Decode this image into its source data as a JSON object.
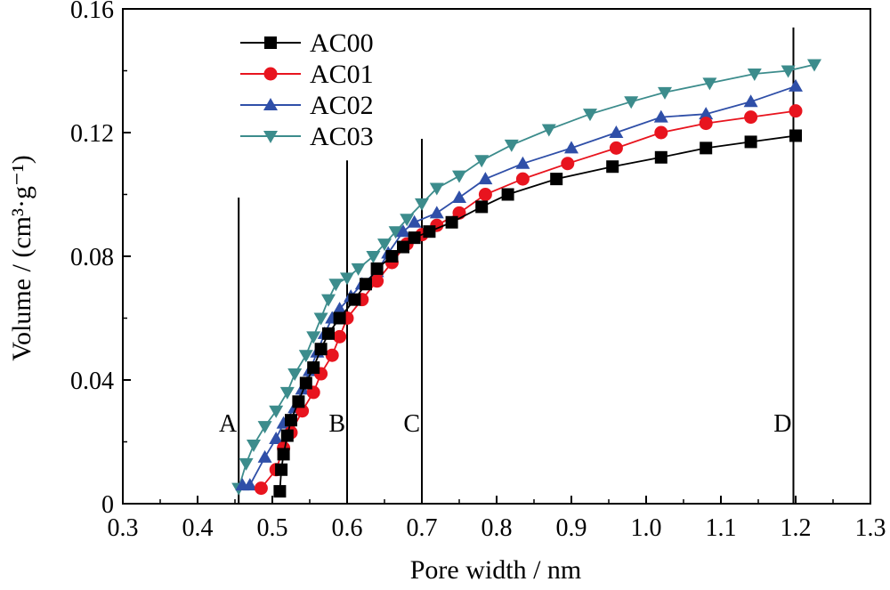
{
  "chart_data": {
    "type": "line",
    "title": "",
    "xlabel": "Pore width / nm",
    "ylabel": "Volume / (cm³·g⁻¹)",
    "xlim": [
      0.3,
      1.3
    ],
    "ylim": [
      0,
      0.16
    ],
    "x_ticks": [
      "0.3",
      "0.4",
      "0.5",
      "0.6",
      "0.7",
      "0.8",
      "0.9",
      "1.0",
      "1.1",
      "1.2",
      "1.3"
    ],
    "y_ticks": [
      "0",
      "0.04",
      "0.08",
      "0.12",
      "0.16"
    ],
    "grid": false,
    "legend_position": "top-left",
    "series": [
      {
        "name": "AC00",
        "color": "#000000",
        "marker": "square",
        "points": [
          [
            0.51,
            0.004
          ],
          [
            0.512,
            0.011
          ],
          [
            0.515,
            0.016
          ],
          [
            0.52,
            0.022
          ],
          [
            0.525,
            0.027
          ],
          [
            0.535,
            0.033
          ],
          [
            0.545,
            0.039
          ],
          [
            0.555,
            0.044
          ],
          [
            0.565,
            0.05
          ],
          [
            0.575,
            0.055
          ],
          [
            0.59,
            0.06
          ],
          [
            0.61,
            0.066
          ],
          [
            0.625,
            0.071
          ],
          [
            0.64,
            0.076
          ],
          [
            0.66,
            0.08
          ],
          [
            0.675,
            0.083
          ],
          [
            0.69,
            0.086
          ],
          [
            0.71,
            0.088
          ],
          [
            0.74,
            0.091
          ],
          [
            0.78,
            0.096
          ],
          [
            0.815,
            0.1
          ],
          [
            0.88,
            0.105
          ],
          [
            0.955,
            0.109
          ],
          [
            1.02,
            0.112
          ],
          [
            1.08,
            0.115
          ],
          [
            1.14,
            0.117
          ],
          [
            1.2,
            0.119
          ]
        ]
      },
      {
        "name": "AC01",
        "color": "#e8141e",
        "marker": "circle",
        "points": [
          [
            0.485,
            0.005
          ],
          [
            0.505,
            0.011
          ],
          [
            0.515,
            0.018
          ],
          [
            0.525,
            0.023
          ],
          [
            0.54,
            0.03
          ],
          [
            0.555,
            0.036
          ],
          [
            0.565,
            0.042
          ],
          [
            0.58,
            0.048
          ],
          [
            0.59,
            0.054
          ],
          [
            0.6,
            0.06
          ],
          [
            0.62,
            0.066
          ],
          [
            0.64,
            0.072
          ],
          [
            0.66,
            0.078
          ],
          [
            0.68,
            0.084
          ],
          [
            0.7,
            0.087
          ],
          [
            0.72,
            0.09
          ],
          [
            0.75,
            0.094
          ],
          [
            0.785,
            0.1
          ],
          [
            0.835,
            0.105
          ],
          [
            0.895,
            0.11
          ],
          [
            0.96,
            0.115
          ],
          [
            1.02,
            0.12
          ],
          [
            1.08,
            0.123
          ],
          [
            1.14,
            0.125
          ],
          [
            1.2,
            0.127
          ]
        ]
      },
      {
        "name": "AC02",
        "color": "#2f4fa8",
        "marker": "triangle-up",
        "points": [
          [
            0.46,
            0.006
          ],
          [
            0.47,
            0.006
          ],
          [
            0.49,
            0.015
          ],
          [
            0.505,
            0.021
          ],
          [
            0.515,
            0.026
          ],
          [
            0.53,
            0.031
          ],
          [
            0.54,
            0.037
          ],
          [
            0.55,
            0.043
          ],
          [
            0.56,
            0.049
          ],
          [
            0.57,
            0.055
          ],
          [
            0.58,
            0.06
          ],
          [
            0.59,
            0.063
          ],
          [
            0.605,
            0.067
          ],
          [
            0.62,
            0.071
          ],
          [
            0.64,
            0.075
          ],
          [
            0.655,
            0.081
          ],
          [
            0.675,
            0.088
          ],
          [
            0.69,
            0.091
          ],
          [
            0.72,
            0.094
          ],
          [
            0.75,
            0.099
          ],
          [
            0.785,
            0.105
          ],
          [
            0.835,
            0.11
          ],
          [
            0.9,
            0.115
          ],
          [
            0.96,
            0.12
          ],
          [
            1.02,
            0.125
          ],
          [
            1.08,
            0.126
          ],
          [
            1.14,
            0.13
          ],
          [
            1.2,
            0.135
          ]
        ]
      },
      {
        "name": "AC03",
        "color": "#3c8c8c",
        "marker": "triangle-down",
        "points": [
          [
            0.455,
            0.005
          ],
          [
            0.465,
            0.013
          ],
          [
            0.475,
            0.019
          ],
          [
            0.49,
            0.025
          ],
          [
            0.505,
            0.03
          ],
          [
            0.52,
            0.036
          ],
          [
            0.53,
            0.042
          ],
          [
            0.545,
            0.048
          ],
          [
            0.555,
            0.054
          ],
          [
            0.565,
            0.06
          ],
          [
            0.575,
            0.066
          ],
          [
            0.585,
            0.071
          ],
          [
            0.6,
            0.073
          ],
          [
            0.615,
            0.076
          ],
          [
            0.635,
            0.08
          ],
          [
            0.65,
            0.084
          ],
          [
            0.665,
            0.088
          ],
          [
            0.68,
            0.092
          ],
          [
            0.7,
            0.097
          ],
          [
            0.72,
            0.102
          ],
          [
            0.75,
            0.106
          ],
          [
            0.78,
            0.111
          ],
          [
            0.82,
            0.116
          ],
          [
            0.87,
            0.121
          ],
          [
            0.925,
            0.126
          ],
          [
            0.98,
            0.13
          ],
          [
            1.025,
            0.133
          ],
          [
            1.085,
            0.136
          ],
          [
            1.145,
            0.139
          ],
          [
            1.19,
            0.14
          ],
          [
            1.225,
            0.142
          ]
        ]
      }
    ],
    "vertical_lines": [
      {
        "label": "A",
        "x": 0.455,
        "y_top": 0.099
      },
      {
        "label": "B",
        "x": 0.6,
        "y_top": 0.111
      },
      {
        "label": "C",
        "x": 0.7,
        "y_top": 0.118
      },
      {
        "label": "D",
        "x": 1.197,
        "y_top": 0.154
      }
    ]
  }
}
